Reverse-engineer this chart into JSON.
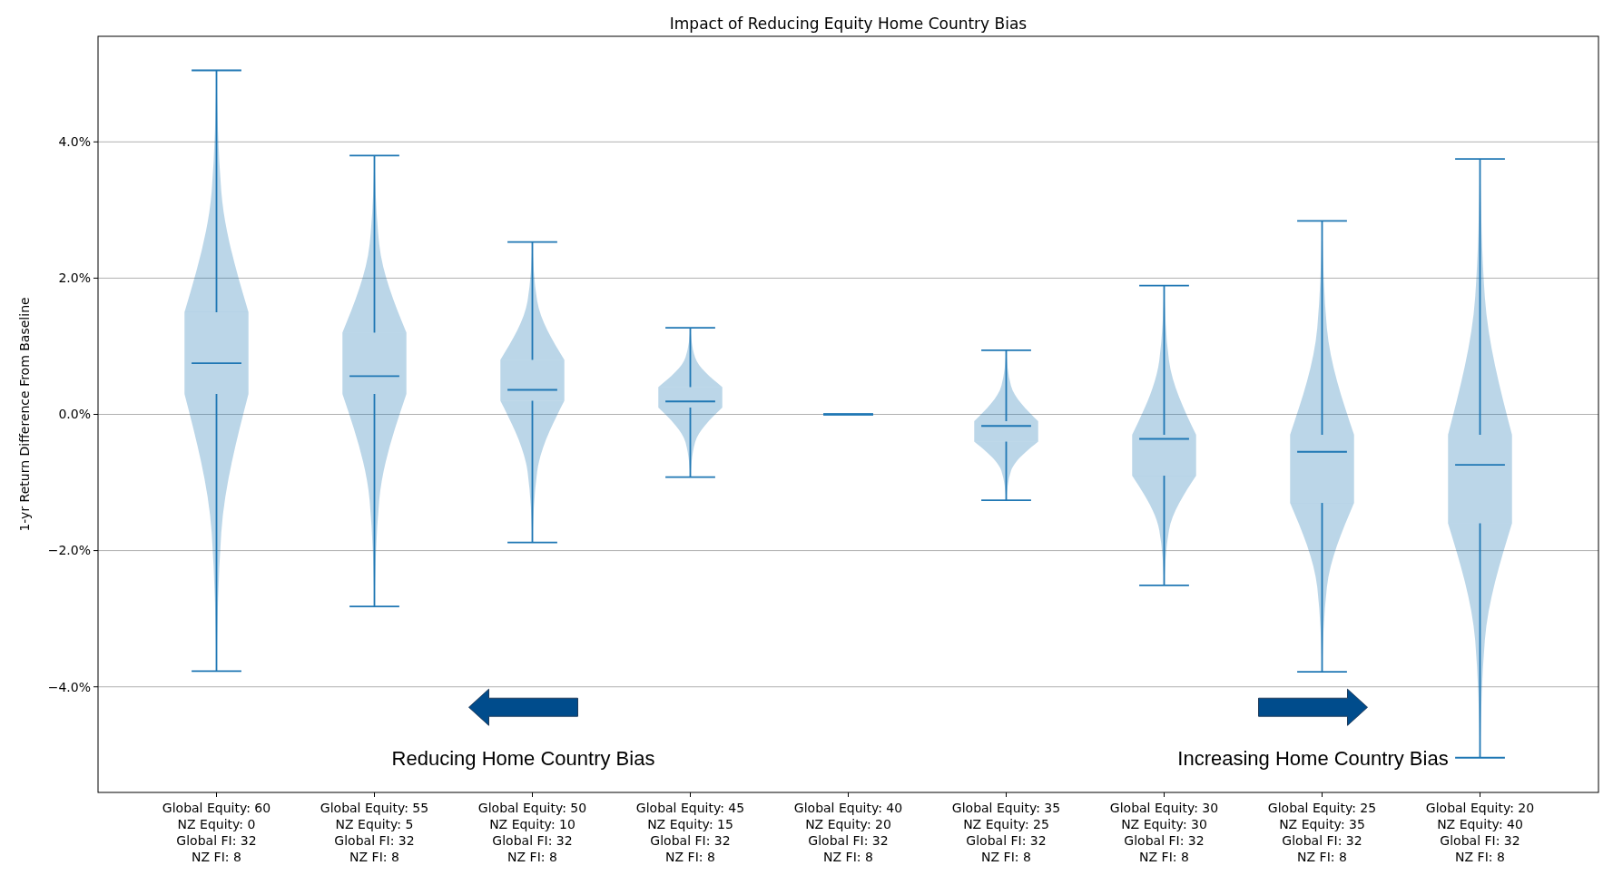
{
  "chart_data": {
    "type": "box",
    "title": "Impact of Reducing Equity Home Country Bias",
    "ylabel": "1-yr Return Difference From Baseline",
    "categories": [
      "Global Equity: 60\nNZ Equity: 0\nGlobal FI: 32\nNZ FI: 8",
      "Global Equity: 55\nNZ Equity: 5\nGlobal FI: 32\nNZ FI: 8",
      "Global Equity: 50\nNZ Equity: 10\nGlobal FI: 32\nNZ FI: 8",
      "Global Equity: 45\nNZ Equity: 15\nGlobal FI: 32\nNZ FI: 8",
      "Global Equity: 40\nNZ Equity: 20\nGlobal FI: 32\nNZ FI: 8",
      "Global Equity: 35\nNZ Equity: 25\nGlobal FI: 32\nNZ FI: 8",
      "Global Equity: 30\nNZ Equity: 30\nGlobal FI: 32\nNZ FI: 8",
      "Global Equity: 25\nNZ Equity: 35\nGlobal FI: 32\nNZ FI: 8",
      "Global Equity: 20\nNZ Equity: 40\nGlobal FI: 32\nNZ FI: 8"
    ],
    "series": [
      {
        "color": "#1f77b4",
        "boxes": [
          {
            "low": -3.77,
            "q1": 0.3,
            "median": 0.75,
            "q3": 1.5,
            "high": 5.05
          },
          {
            "low": -2.82,
            "q1": 0.3,
            "median": 0.56,
            "q3": 1.2,
            "high": 3.8
          },
          {
            "low": -1.88,
            "q1": 0.2,
            "median": 0.36,
            "q3": 0.8,
            "high": 2.53
          },
          {
            "low": -0.92,
            "q1": 0.1,
            "median": 0.19,
            "q3": 0.4,
            "high": 1.27
          },
          {
            "low": 0,
            "q1": 0,
            "median": 0,
            "q3": 0,
            "high": 0
          },
          {
            "low": -1.26,
            "q1": -0.4,
            "median": -0.17,
            "q3": -0.1,
            "high": 0.94
          },
          {
            "low": -2.51,
            "q1": -0.9,
            "median": -0.36,
            "q3": -0.3,
            "high": 1.89
          },
          {
            "low": -3.78,
            "q1": -1.3,
            "median": -0.55,
            "q3": -0.3,
            "high": 2.84
          },
          {
            "low": -5.04,
            "q1": -1.6,
            "median": -0.74,
            "q3": -0.3,
            "high": 3.75
          }
        ]
      }
    ],
    "ylim": [
      -5.55,
      5.55
    ],
    "yticks": [
      {
        "value": -4,
        "label": "−4.0%"
      },
      {
        "value": -2,
        "label": "−2.0%"
      },
      {
        "value": 0,
        "label": "0.0%"
      },
      {
        "value": 2,
        "label": "2.0%"
      },
      {
        "value": 4,
        "label": "4.0%"
      }
    ],
    "grid": "y",
    "annotations": [
      "Reducing Home Country Bias",
      "Increasing Home Country Bias"
    ]
  }
}
